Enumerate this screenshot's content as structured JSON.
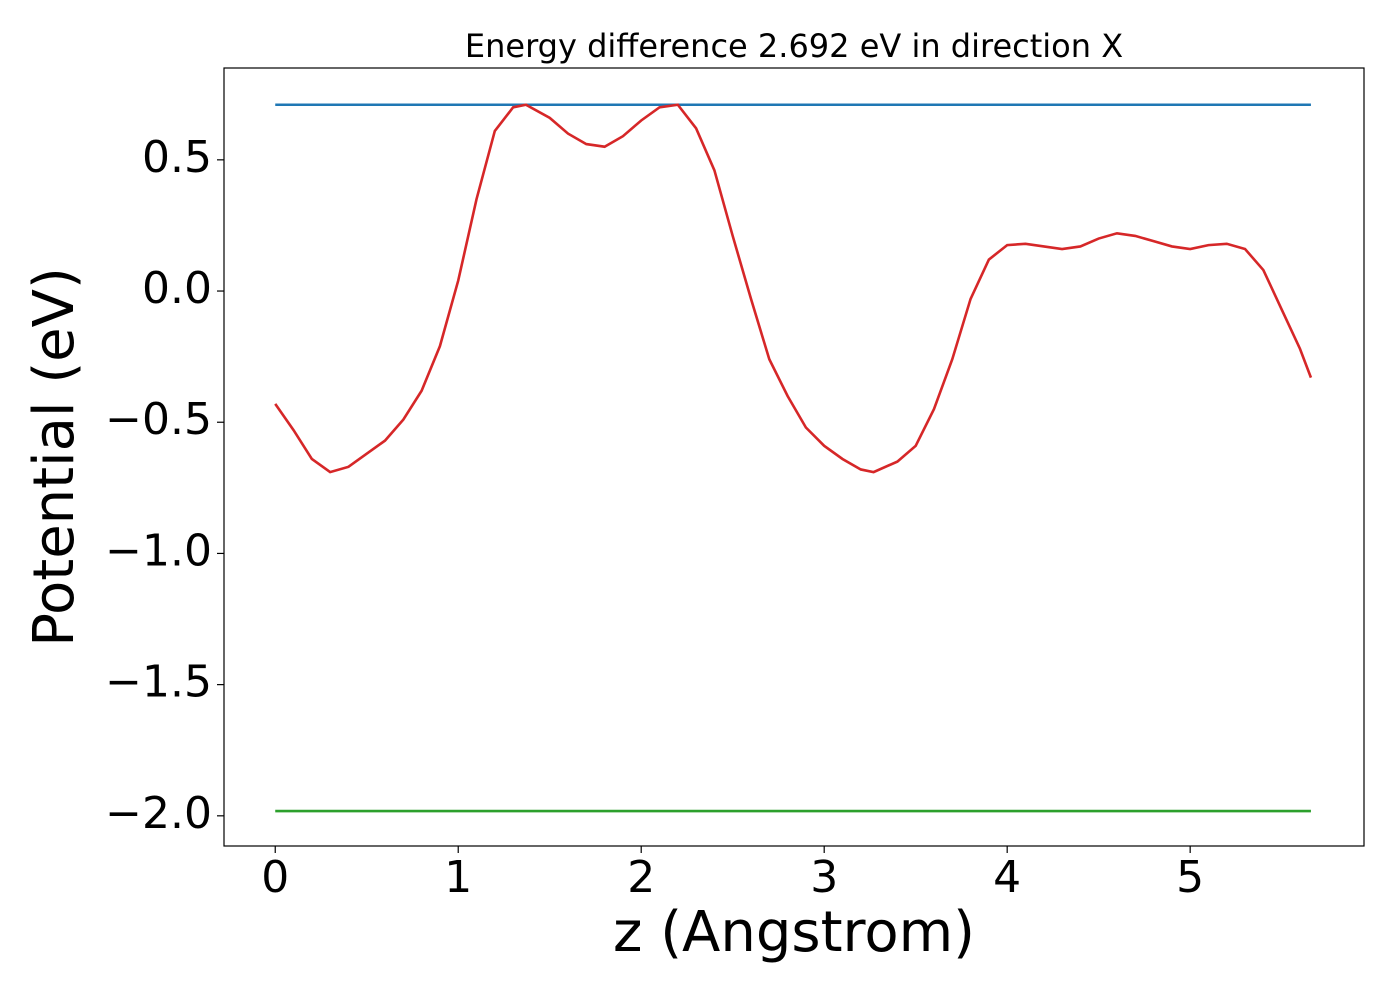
{
  "chart_data": {
    "type": "line",
    "title": "Energy difference 2.692 eV in direction X",
    "xlabel": "z (Angstrom)",
    "ylabel": "Potential (eV)",
    "xlim": [
      -0.28,
      5.95
    ],
    "ylim": [
      -2.115,
      0.85
    ],
    "xticks": [
      0,
      1,
      2,
      3,
      4,
      5
    ],
    "yticks": [
      0.5,
      {
        "value": 0,
        "label": "0.0"
      },
      {
        "value": -0.5,
        "label": "−0.5"
      },
      {
        "value": -1,
        "label": "−1.0"
      },
      {
        "value": -1.5,
        "label": "−1.5"
      },
      {
        "value": -2,
        "label": "−2.0"
      }
    ],
    "grid": false,
    "series": [
      {
        "color": "#d62728",
        "x": [
          0,
          0.1,
          0.2,
          0.3,
          0.4,
          0.5,
          0.6,
          0.7,
          0.8,
          0.9,
          1.0,
          1.1,
          1.2,
          1.3,
          1.37,
          1.5,
          1.6,
          1.7,
          1.8,
          1.9,
          2.0,
          2.1,
          2.2,
          2.3,
          2.4,
          2.5,
          2.6,
          2.7,
          2.8,
          2.9,
          3.0,
          3.1,
          3.2,
          3.27,
          3.4,
          3.5,
          3.6,
          3.7,
          3.8,
          3.9,
          4.0,
          4.1,
          4.2,
          4.3,
          4.4,
          4.5,
          4.6,
          4.7,
          4.8,
          4.9,
          5.0,
          5.1,
          5.2,
          5.3,
          5.4,
          5.5,
          5.6,
          5.66
        ],
        "values": [
          -0.43,
          -0.53,
          -0.64,
          -0.69,
          -0.67,
          -0.62,
          -0.57,
          -0.49,
          -0.38,
          -0.21,
          0.04,
          0.35,
          0.61,
          0.7,
          0.71,
          0.66,
          0.6,
          0.56,
          0.55,
          0.59,
          0.65,
          0.7,
          0.71,
          0.62,
          0.46,
          0.21,
          -0.03,
          -0.26,
          -0.4,
          -0.52,
          -0.59,
          -0.64,
          -0.68,
          -0.69,
          -0.65,
          -0.59,
          -0.45,
          -0.26,
          -0.03,
          0.12,
          0.175,
          0.18,
          0.17,
          0.16,
          0.17,
          0.2,
          0.22,
          0.21,
          0.19,
          0.17,
          0.16,
          0.175,
          0.18,
          0.16,
          0.08,
          -0.07,
          -0.22,
          -0.33
        ]
      },
      {
        "color": "#1f77b4",
        "x": [
          0,
          5.66
        ],
        "values": [
          0.71,
          0.71
        ]
      },
      {
        "color": "#2ca02c",
        "x": [
          0,
          5.66
        ],
        "values": [
          -1.982,
          -1.982
        ]
      }
    ]
  }
}
